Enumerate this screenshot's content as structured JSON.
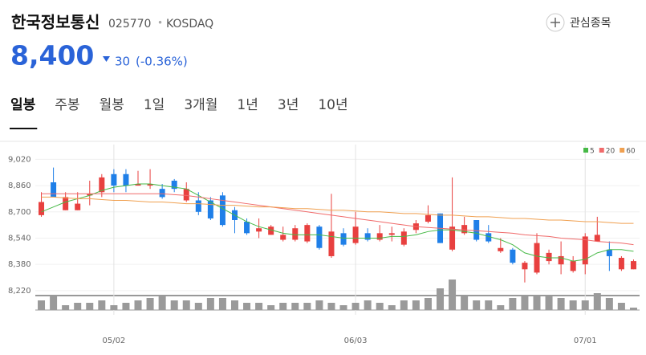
{
  "header": {
    "name": "한국정보통신",
    "code": "025770",
    "separator": "•",
    "market": "KOSDAQ",
    "watch_button": "관심종목",
    "price": "8,400",
    "change": "30",
    "change_pct": "(-0.36%)"
  },
  "tabs": {
    "items": [
      "일봉",
      "주봉",
      "월봉",
      "1일",
      "3개월",
      "1년",
      "3년",
      "10년"
    ],
    "selected": 0
  },
  "chart_data": {
    "type": "candlestick",
    "categories": [
      null,
      null,
      null,
      null,
      null,
      null,
      "05/02",
      null,
      null,
      null,
      null,
      null,
      null,
      null,
      null,
      null,
      null,
      null,
      null,
      null,
      null,
      null,
      null,
      null,
      null,
      null,
      "06/03",
      null,
      null,
      null,
      null,
      null,
      null,
      null,
      null,
      null,
      null,
      null,
      null,
      null,
      null,
      null,
      null,
      null,
      null,
      "07/01",
      null,
      null,
      null,
      null
    ],
    "open": [
      8680,
      8880,
      8710,
      8710,
      8800,
      8820,
      8930,
      8930,
      8860,
      8860,
      8840,
      8890,
      8770,
      8770,
      8770,
      8800,
      8710,
      8640,
      8580,
      8560,
      8530,
      8530,
      8520,
      8610,
      8430,
      8570,
      8510,
      8570,
      8530,
      8560,
      8500,
      8590,
      8640,
      8690,
      8470,
      8570,
      8650,
      8570,
      8460,
      8470,
      8350,
      8330,
      8400,
      8380,
      8340,
      8380,
      8520,
      8470,
      8350,
      8350
    ],
    "high": [
      8820,
      8970,
      8820,
      8820,
      8890,
      8930,
      8960,
      8960,
      8950,
      8960,
      8870,
      8900,
      8880,
      8820,
      8790,
      8820,
      8730,
      8660,
      8660,
      8620,
      8610,
      8620,
      8630,
      8620,
      8810,
      8600,
      8700,
      8600,
      8620,
      8610,
      8600,
      8650,
      8740,
      8690,
      8910,
      8670,
      8650,
      8620,
      8540,
      8480,
      8400,
      8570,
      8470,
      8520,
      8430,
      8570,
      8670,
      8520,
      8430,
      8410
    ],
    "low": [
      8670,
      8790,
      8710,
      8710,
      8740,
      8790,
      8820,
      8820,
      8860,
      8840,
      8780,
      8820,
      8760,
      8680,
      8650,
      8610,
      8570,
      8560,
      8540,
      8560,
      8520,
      8520,
      8510,
      8470,
      8420,
      8490,
      8500,
      8520,
      8520,
      8520,
      8490,
      8570,
      8630,
      8510,
      8460,
      8560,
      8520,
      8510,
      8450,
      8380,
      8270,
      8320,
      8380,
      8320,
      8330,
      8320,
      8520,
      8340,
      8340,
      8350
    ],
    "close": [
      8760,
      8790,
      8790,
      8750,
      8810,
      8910,
      8860,
      8860,
      8870,
      8870,
      8790,
      8840,
      8840,
      8700,
      8660,
      8620,
      8650,
      8570,
      8600,
      8610,
      8560,
      8600,
      8620,
      8480,
      8580,
      8500,
      8610,
      8530,
      8570,
      8570,
      8580,
      8630,
      8680,
      8510,
      8610,
      8620,
      8530,
      8520,
      8480,
      8390,
      8390,
      8510,
      8450,
      8430,
      8400,
      8550,
      8560,
      8430,
      8420,
      8400
    ],
    "up_color": "#e8403f",
    "down_color": "#1f7fe8",
    "series": [
      {
        "name": "5",
        "color": "#46b946",
        "values": [
          8700,
          8730,
          8760,
          8780,
          8800,
          8830,
          8850,
          8860,
          8870,
          8870,
          8860,
          8850,
          8840,
          8800,
          8760,
          8720,
          8680,
          8640,
          8610,
          8590,
          8570,
          8560,
          8560,
          8560,
          8550,
          8540,
          8540,
          8540,
          8540,
          8550,
          8550,
          8560,
          8580,
          8590,
          8590,
          8580,
          8570,
          8550,
          8530,
          8500,
          8450,
          8430,
          8420,
          8420,
          8400,
          8410,
          8450,
          8470,
          8470,
          8460
        ]
      },
      {
        "name": "20",
        "color": "#f06a6a",
        "values": [
          8810,
          8810,
          8810,
          8810,
          8810,
          8810,
          8810,
          8810,
          8810,
          8810,
          8810,
          8805,
          8800,
          8790,
          8780,
          8770,
          8760,
          8750,
          8740,
          8730,
          8720,
          8710,
          8700,
          8690,
          8680,
          8670,
          8660,
          8650,
          8640,
          8630,
          8620,
          8610,
          8605,
          8600,
          8595,
          8590,
          8585,
          8580,
          8575,
          8570,
          8560,
          8555,
          8550,
          8540,
          8535,
          8530,
          8520,
          8515,
          8510,
          8500
        ]
      },
      {
        "name": "60",
        "color": "#f0a050",
        "values": [
          8790,
          8790,
          8785,
          8780,
          8780,
          8775,
          8770,
          8770,
          8765,
          8760,
          8760,
          8755,
          8750,
          8750,
          8745,
          8740,
          8740,
          8735,
          8730,
          8730,
          8725,
          8720,
          8720,
          8715,
          8710,
          8710,
          8705,
          8700,
          8700,
          8695,
          8690,
          8690,
          8685,
          8680,
          8680,
          8675,
          8670,
          8670,
          8665,
          8660,
          8660,
          8655,
          8650,
          8650,
          8645,
          8640,
          8640,
          8635,
          8630,
          8630
        ]
      }
    ],
    "volume": [
      12,
      18,
      6,
      9,
      9,
      12,
      6,
      9,
      12,
      15,
      18,
      12,
      12,
      9,
      15,
      15,
      12,
      9,
      9,
      6,
      9,
      9,
      9,
      12,
      9,
      6,
      9,
      12,
      9,
      6,
      12,
      12,
      15,
      27,
      38,
      18,
      12,
      12,
      6,
      15,
      18,
      18,
      18,
      15,
      12,
      12,
      21,
      15,
      9,
      3
    ],
    "volume_color": "#9a9a9a",
    "vlim": [
      0,
      40
    ],
    "ylim": [
      8190,
      9110
    ],
    "yticks": [
      {
        "value": 9020,
        "label": "9,020"
      },
      {
        "value": 8860,
        "label": "8,860"
      },
      {
        "value": 8700,
        "label": "8,700"
      },
      {
        "value": 8540,
        "label": "8,540"
      },
      {
        "value": 8380,
        "label": "8,380"
      },
      {
        "value": 8220,
        "label": "8,220"
      }
    ],
    "grid": true
  }
}
